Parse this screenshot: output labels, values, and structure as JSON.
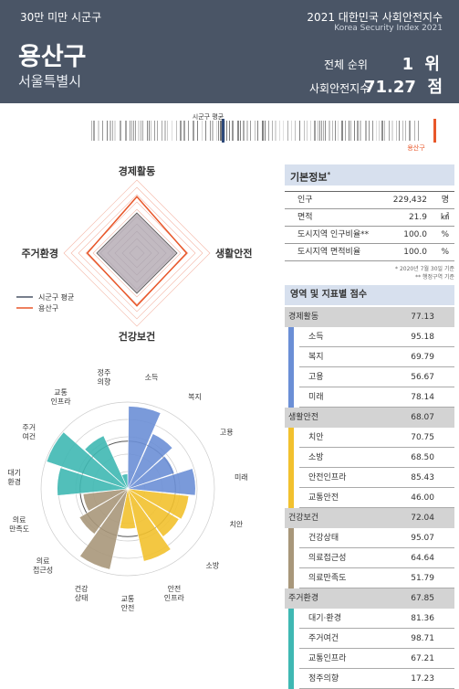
{
  "header": {
    "category": "30만 미만 시군구",
    "year_title": "2021 대한민국 사회안전지수",
    "english_title": "Korea Security Index 2021",
    "district": "용산구",
    "region": "서울특별시",
    "rank_label": "전체 순위",
    "rank_value": "1 위",
    "index_label": "사회안전지수",
    "index_value": "71.27",
    "index_unit": "점"
  },
  "barcode": {
    "avg_label": "시군구 평균",
    "self_label": "용산구",
    "self_color": "#e8572a",
    "avg_color": "#2e4a7a"
  },
  "radar": {
    "axes": [
      "경제활동",
      "생활안전",
      "건강보건",
      "주거환경"
    ],
    "values": [
      77.13,
      68.07,
      72.04,
      67.85
    ],
    "avg_values": [
      55,
      55,
      55,
      55
    ],
    "legend": [
      "시군구 평균",
      "용산구"
    ],
    "colors": {
      "self": "#e8572a",
      "avg": "#4a5566"
    }
  },
  "basic_info": {
    "title": "기본정보",
    "title_mark": "*",
    "rows": [
      {
        "label": "인구",
        "value": "229,432",
        "unit": "명"
      },
      {
        "label": "면적",
        "value": "21.9",
        "unit": "㎢"
      },
      {
        "label": "도시지역 인구비율**",
        "value": "100.0",
        "unit": "%"
      },
      {
        "label": "도시지역 면적비율",
        "value": "100.0",
        "unit": "%"
      }
    ],
    "notes": [
      "* 2020년 7월 30일 기준",
      "** 행정구역 기준"
    ]
  },
  "scores": {
    "title": "영역 및 지표별 점수",
    "categories": [
      {
        "name": "경제활동",
        "value": "77.13",
        "color": "#6b8fd6",
        "items": [
          {
            "name": "소득",
            "value": "95.18"
          },
          {
            "name": "복지",
            "value": "69.79"
          },
          {
            "name": "고용",
            "value": "56.67"
          },
          {
            "name": "미래",
            "value": "78.14"
          }
        ]
      },
      {
        "name": "생활안전",
        "value": "68.07",
        "color": "#f2c12e",
        "items": [
          {
            "name": "치안",
            "value": "70.75"
          },
          {
            "name": "소방",
            "value": "68.50"
          },
          {
            "name": "안전인프라",
            "value": "85.43"
          },
          {
            "name": "교통안전",
            "value": "46.00"
          }
        ]
      },
      {
        "name": "건강보건",
        "value": "72.04",
        "color": "#a8977a",
        "items": [
          {
            "name": "건강상태",
            "value": "95.07"
          },
          {
            "name": "의료접근성",
            "value": "64.64"
          },
          {
            "name": "의료만족도",
            "value": "51.79"
          }
        ]
      },
      {
        "name": "주거환경",
        "value": "67.85",
        "color": "#3fb8b3",
        "items": [
          {
            "name": "대기·환경",
            "value": "81.36"
          },
          {
            "name": "주거여건",
            "value": "98.71"
          },
          {
            "name": "교통인프라",
            "value": "67.21"
          },
          {
            "name": "정주의향",
            "value": "17.23"
          }
        ]
      }
    ]
  },
  "polar": {
    "labels": [
      "소득",
      "복지",
      "고용",
      "미래",
      "치안",
      "소방",
      "안전\n인프라",
      "교통\n안전",
      "건강\n상태",
      "의료\n접근성",
      "의료\n만족도",
      "대기\n환경",
      "주거\n여건",
      "교통\n인프라",
      "정주\n의향"
    ],
    "values": [
      95.18,
      69.79,
      56.67,
      78.14,
      70.75,
      68.5,
      85.43,
      46.0,
      95.07,
      64.64,
      51.79,
      81.36,
      98.71,
      67.21,
      17.23
    ],
    "colors": [
      "#6b8fd6",
      "#6b8fd6",
      "#6b8fd6",
      "#6b8fd6",
      "#f2c12e",
      "#f2c12e",
      "#f2c12e",
      "#f2c12e",
      "#a8977a",
      "#a8977a",
      "#a8977a",
      "#3fb8b3",
      "#3fb8b3",
      "#3fb8b3",
      "#3fb8b3"
    ]
  }
}
